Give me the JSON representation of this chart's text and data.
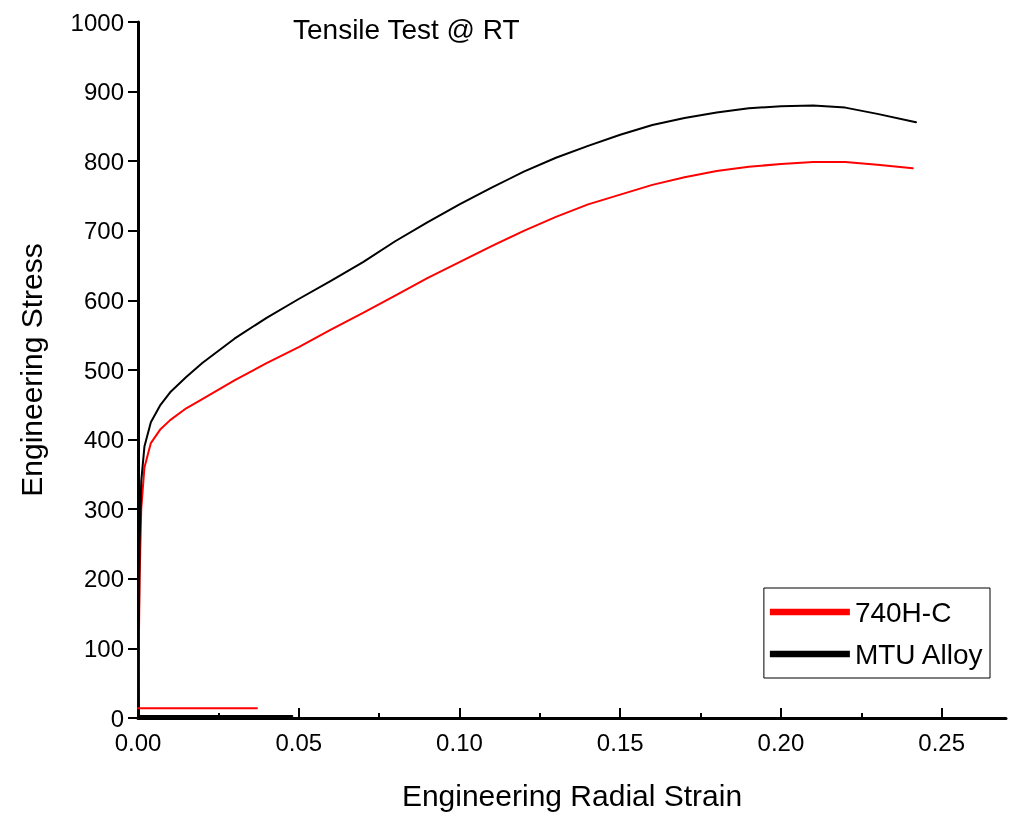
{
  "chart_data": {
    "type": "line",
    "title": "Tensile Test @ RT",
    "xlabel": "Engineering Radial Strain",
    "ylabel": "Engineering Stress",
    "xlim": [
      0,
      0.27
    ],
    "ylim": [
      0,
      1000
    ],
    "xticks": [
      {
        "value": 0,
        "label": "0.00"
      },
      {
        "value": 0.05,
        "label": "0.05"
      },
      {
        "value": 0.1,
        "label": "0.10"
      },
      {
        "value": 0.15,
        "label": "0.15"
      },
      {
        "value": 0.2,
        "label": "0.20"
      },
      {
        "value": 0.25,
        "label": "0.25"
      }
    ],
    "yticks": [
      0,
      100,
      200,
      300,
      400,
      500,
      600,
      700,
      800,
      900,
      1000
    ],
    "grid": false,
    "legend": "bottom right",
    "marker": "none",
    "line_style": "solid",
    "series": [
      {
        "name": "740H-C",
        "color": "#ff0000",
        "x": [
          0,
          0.0005,
          0.001,
          0.002,
          0.004,
          0.007,
          0.01,
          0.015,
          0.02,
          0.03,
          0.04,
          0.05,
          0.06,
          0.07,
          0.08,
          0.09,
          0.1,
          0.11,
          0.12,
          0.13,
          0.14,
          0.15,
          0.16,
          0.17,
          0.18,
          0.19,
          0.2,
          0.21,
          0.22,
          0.23,
          0.241
        ],
        "values": [
          0,
          200,
          300,
          360,
          395,
          415,
          428,
          445,
          458,
          485,
          510,
          533,
          558,
          582,
          607,
          632,
          655,
          678,
          700,
          720,
          738,
          752,
          766,
          777,
          786,
          792,
          796,
          799,
          799,
          795,
          790
        ]
      },
      {
        "name": "MTU Alloy",
        "color": "#000000",
        "x": [
          0,
          0.0005,
          0.001,
          0.002,
          0.004,
          0.007,
          0.01,
          0.015,
          0.02,
          0.03,
          0.04,
          0.05,
          0.06,
          0.07,
          0.08,
          0.09,
          0.1,
          0.11,
          0.12,
          0.13,
          0.14,
          0.15,
          0.16,
          0.17,
          0.18,
          0.19,
          0.2,
          0.21,
          0.22,
          0.23,
          0.242
        ],
        "values": [
          0,
          250,
          340,
          390,
          425,
          450,
          468,
          490,
          510,
          545,
          575,
          602,
          628,
          655,
          685,
          712,
          738,
          762,
          785,
          805,
          822,
          838,
          852,
          862,
          870,
          876,
          879,
          880,
          877,
          868,
          856
        ]
      },
      {
        "color": "#ff0000",
        "x": [
          0,
          0.037
        ],
        "values": [
          14,
          14
        ]
      },
      {
        "color": "#000000",
        "x": [
          0,
          0.048
        ],
        "values": [
          3,
          3
        ]
      }
    ]
  }
}
